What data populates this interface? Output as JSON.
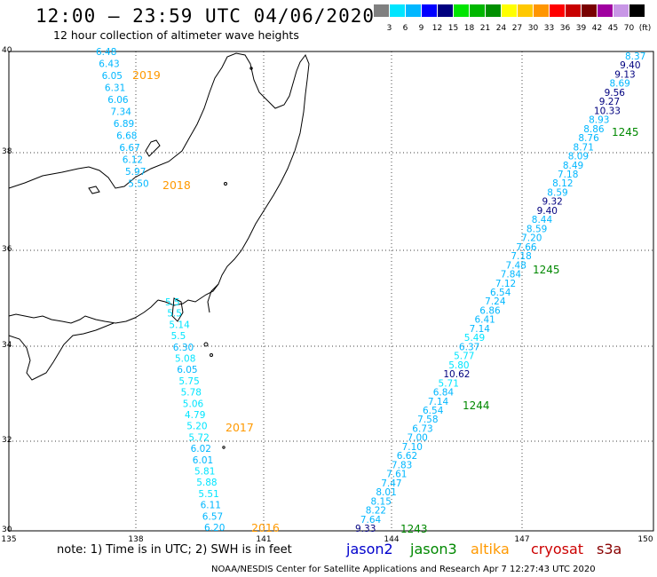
{
  "header": {
    "title": "12:00 – 23:59 UTC 04/06/2020",
    "subtitle": "12 hour collection of altimeter wave heights"
  },
  "scale": {
    "colors": [
      "#808080",
      "#00e5ff",
      "#00b7ff",
      "#0000ff",
      "#00007f",
      "#00e500",
      "#00b700",
      "#008f00",
      "#ffff00",
      "#ffc800",
      "#ff9600",
      "#ff0000",
      "#c80000",
      "#780000",
      "#a000a0",
      "#c896e6",
      "#000000"
    ],
    "labels": [
      "3",
      "6",
      "9",
      "12",
      "15",
      "18",
      "21",
      "24",
      "27",
      "30",
      "33",
      "36",
      "39",
      "42",
      "45",
      "70",
      "(ft)"
    ]
  },
  "axes": {
    "lat_labels": [
      "40",
      "38",
      "36",
      "34",
      "32",
      "30"
    ],
    "lon_labels": [
      "135",
      "138",
      "141",
      "144",
      "147",
      "150"
    ]
  },
  "tracks": [
    {
      "name": "2019",
      "color": "#00b7ff",
      "labels": [
        "6.48",
        "6.43",
        "6.05",
        "6.31",
        "6.06",
        "7.34",
        "6.89",
        "6.68",
        "6.67",
        "6.12",
        "5.97",
        "5.50"
      ]
    },
    {
      "name": "2018",
      "color": "#00b7ff",
      "labels": []
    },
    {
      "name": "2017",
      "color": "#00e5ff",
      "labels": [
        "5.5",
        "5.5",
        "5.14",
        "5.5",
        "6.30",
        "5.08",
        "6.05",
        "5.75",
        "5.78",
        "5.06",
        "4.79",
        "5.20",
        "5.72",
        "6.02",
        "6.01",
        "5.81",
        "5.88",
        "5.51",
        "6.11",
        "6.57",
        "6.20"
      ]
    },
    {
      "name": "1245",
      "labels": [
        "8.37",
        "9.40",
        "9.13",
        "8.69",
        "9.56",
        "9.27",
        "10.33",
        "8.93",
        "8.86",
        "8.76",
        "8.71",
        "8.09",
        "8.49",
        "7.18",
        "8.12",
        "8.59",
        "9.32",
        "9.40",
        "8.44",
        "8.59",
        "7.20",
        "7.66",
        "7.18",
        "7.48",
        "7.84",
        "7.12",
        "6.54",
        "7.24",
        "6.86",
        "6.41",
        "7.14",
        "5.49",
        "6.37",
        "5.77",
        "5.80",
        "10.62",
        "5.71",
        "6.84",
        "7.14",
        "6.54",
        "7.58",
        "6.73",
        "7.00",
        "7.10",
        "6.62",
        "7.83",
        "7.61",
        "7.47",
        "8.01",
        "8.15",
        "8.22",
        "7.64",
        "9.33"
      ]
    }
  ],
  "track_labels": {
    "y2019": "2019",
    "y2018": "2018",
    "y2017": "2017",
    "y2016": "2016",
    "t1245a": "1245",
    "t1245b": "1245",
    "t1244": "1244",
    "t1243": "1243"
  },
  "footer": {
    "note": "note: 1) Time is in UTC; 2) SWH is in feet",
    "jason2": "jason2",
    "jason3": "jason3",
    "altika": "altika",
    "cryosat": "cryosat",
    "s3a": "s3a",
    "credit": "NOAA/NESDIS Center for Satellite Applications and Research    Apr  7 12:27:43 UTC 2020"
  },
  "colors": {
    "jason2": "#0000cc",
    "jason3": "#008800",
    "altika": "#ff9900",
    "cryosat": "#cc0000",
    "s3a": "#880000",
    "year_label": "#ff9900",
    "track_label": "#008800"
  }
}
